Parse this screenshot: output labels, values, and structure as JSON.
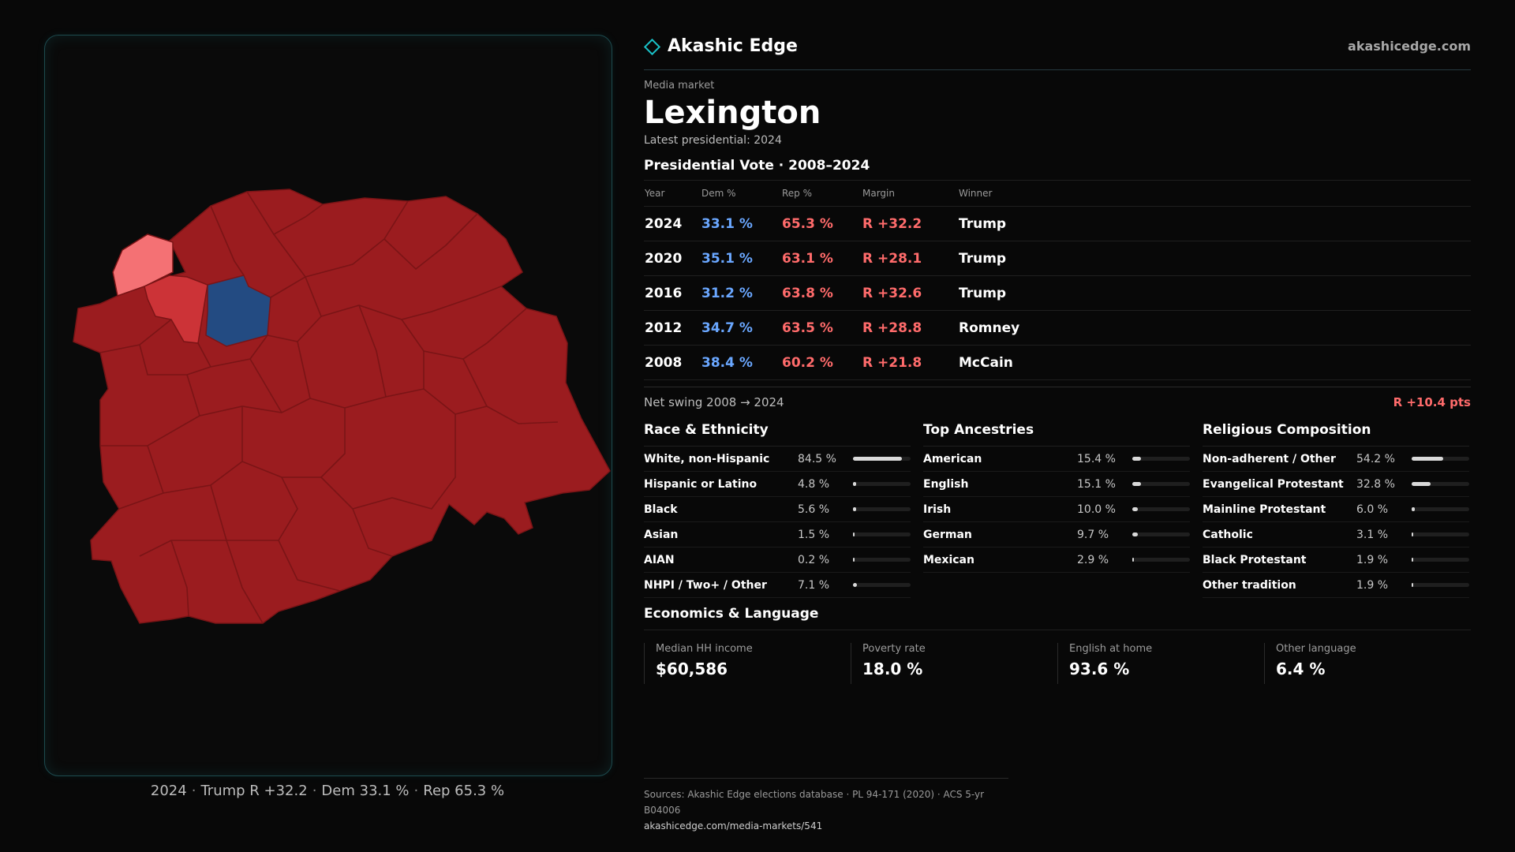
{
  "brand": {
    "name": "Akashic Edge",
    "site": "akashicedge.com",
    "accent": "#19c1c7"
  },
  "market": {
    "eyebrow": "Media market",
    "name": "Lexington",
    "latest": "Latest presidential: 2024"
  },
  "vote": {
    "title": "Presidential Vote · 2008–2024",
    "headers": [
      "Year",
      "Dem %",
      "Rep %",
      "Margin",
      "Winner"
    ],
    "rows": [
      {
        "year": "2024",
        "dem": "33.1 %",
        "rep": "65.3 %",
        "margin": "R +32.2",
        "winner": "Trump"
      },
      {
        "year": "2020",
        "dem": "35.1 %",
        "rep": "63.1 %",
        "margin": "R +28.1",
        "winner": "Trump"
      },
      {
        "year": "2016",
        "dem": "31.2 %",
        "rep": "63.8 %",
        "margin": "R +32.6",
        "winner": "Trump"
      },
      {
        "year": "2012",
        "dem": "34.7 %",
        "rep": "63.5 %",
        "margin": "R +28.8",
        "winner": "Romney"
      },
      {
        "year": "2008",
        "dem": "38.4 %",
        "rep": "60.2 %",
        "margin": "R +21.8",
        "winner": "McCain"
      }
    ],
    "swing_label": "Net swing 2008 → 2024",
    "swing_value": "R +10.4 pts",
    "colors": {
      "dem": "#6aa7ff",
      "rep": "#ff6b6b"
    }
  },
  "race": {
    "title": "Race & Ethnicity",
    "items": [
      {
        "label": "White, non-Hispanic",
        "value": "84.5 %",
        "pct": 84.5
      },
      {
        "label": "Hispanic or Latino",
        "value": "4.8 %",
        "pct": 4.8
      },
      {
        "label": "Black",
        "value": "5.6 %",
        "pct": 5.6
      },
      {
        "label": "Asian",
        "value": "1.5 %",
        "pct": 1.5
      },
      {
        "label": "AIAN",
        "value": "0.2 %",
        "pct": 0.2
      },
      {
        "label": "NHPI / Two+ / Other",
        "value": "7.1 %",
        "pct": 7.1
      }
    ]
  },
  "ancestry": {
    "title": "Top Ancestries",
    "items": [
      {
        "label": "American",
        "value": "15.4 %",
        "pct": 15.4
      },
      {
        "label": "English",
        "value": "15.1 %",
        "pct": 15.1
      },
      {
        "label": "Irish",
        "value": "10.0 %",
        "pct": 10.0
      },
      {
        "label": "German",
        "value": "9.7 %",
        "pct": 9.7
      },
      {
        "label": "Mexican",
        "value": "2.9 %",
        "pct": 2.9
      }
    ]
  },
  "religion": {
    "title": "Religious Composition",
    "items": [
      {
        "label": "Non-adherent / Other",
        "value": "54.2 %",
        "pct": 54.2
      },
      {
        "label": "Evangelical Protestant",
        "value": "32.8 %",
        "pct": 32.8
      },
      {
        "label": "Mainline Protestant",
        "value": "6.0 %",
        "pct": 6.0
      },
      {
        "label": "Catholic",
        "value": "3.1 %",
        "pct": 3.1
      },
      {
        "label": "Black Protestant",
        "value": "1.9 %",
        "pct": 1.9
      },
      {
        "label": "Other tradition",
        "value": "1.9 %",
        "pct": 1.9
      }
    ]
  },
  "economics": {
    "title": "Economics & Language",
    "cards": [
      {
        "label": "Median HH income",
        "value": "$60,586"
      },
      {
        "label": "Poverty rate",
        "value": "18.0 %"
      },
      {
        "label": "English at home",
        "value": "93.6 %"
      },
      {
        "label": "Other language",
        "value": "6.4 %"
      }
    ]
  },
  "map": {
    "caption_year": "2024",
    "caption_result": "Trump R +32.2",
    "caption_dem": "Dem 33.1 %",
    "caption_rep": "Rep 65.3 %",
    "colors": {
      "strong_rep": "#9b1c1f",
      "mid_rep": "#cc3337",
      "lean_rep": "#f47174",
      "dem": "#234b82",
      "border": "#7a1416"
    }
  },
  "sources": {
    "text": "Sources: Akashic Edge elections database · PL 94-171 (2020) · ACS 5-yr B04006",
    "url": "akashicedge.com/media-markets/541"
  }
}
